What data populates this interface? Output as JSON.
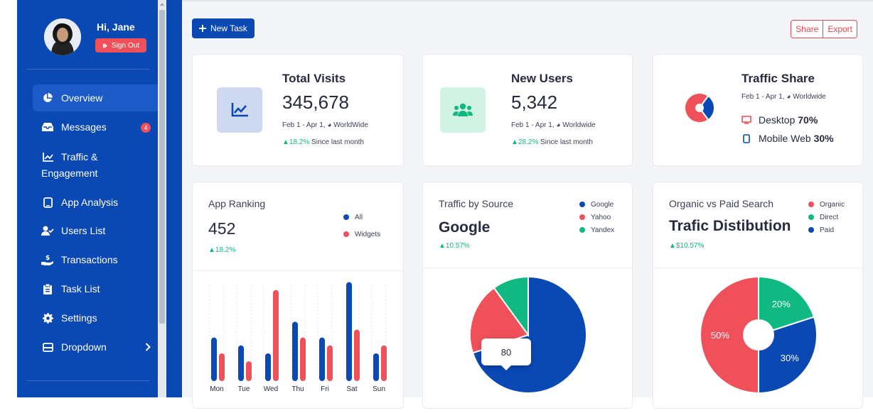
{
  "sidebar": {
    "greeting": "Hi, Jane",
    "signout_label": "Sign Out",
    "items": [
      {
        "label": "Overview",
        "active": true
      },
      {
        "label": "Messages",
        "badge": "4"
      },
      {
        "label": "Traffic &",
        "label2": "Engagement"
      },
      {
        "label": "App Analysis"
      },
      {
        "label": "Users List"
      },
      {
        "label": "Transactions"
      },
      {
        "label": "Task List"
      },
      {
        "label": "Settings"
      },
      {
        "label": "Dropdown"
      }
    ]
  },
  "toolbar": {
    "new_task_label": "New Task",
    "share_label": "Share",
    "export_label": "Export"
  },
  "cards": {
    "visits": {
      "title": "Total Visits",
      "value": "345,678",
      "range": "Feb 1 - Apr 1,",
      "region": "WorldWide",
      "change": "18.2%",
      "since": "Since last month"
    },
    "users": {
      "title": "New Users",
      "value": "5,342",
      "range": "Feb 1 - Apr 1,",
      "region": "Worldwide",
      "change": "28.2%",
      "since": "Since last month"
    },
    "share": {
      "title": "Traffic Share",
      "range": "Feb 1 - Apr 1,",
      "region": "Worldwide",
      "desktop_label": "Desktop",
      "desktop_value": "70%",
      "mobile_label": "Mobile Web",
      "mobile_value": "30%"
    }
  },
  "ranking": {
    "title": "App Ranking",
    "value": "452",
    "change": "18.2%",
    "legend": [
      "All",
      "Widgets"
    ]
  },
  "source": {
    "title": "Traffic by Source",
    "big": "Google",
    "change": "10.57%",
    "legend": [
      "Google",
      "Yahoo",
      "Yandex"
    ],
    "tooltip": "80"
  },
  "search": {
    "title": "Organic vs Paid Search",
    "big": "Trafic Distibution",
    "change": "$10.57%",
    "legend": [
      "Organic",
      "Direct",
      "Paid"
    ]
  },
  "colors": {
    "blue": "#0a48b3",
    "red": "#f0505a",
    "green": "#10b981"
  },
  "chart_data": [
    {
      "type": "bar",
      "title": "App Ranking",
      "categories": [
        "Mon",
        "Tue",
        "Wed",
        "Thu",
        "Fri",
        "Sat",
        "Sun"
      ],
      "series": [
        {
          "name": "All",
          "values": [
            55,
            45,
            35,
            75,
            55,
            125,
            35
          ]
        },
        {
          "name": "Widgets",
          "values": [
            35,
            25,
            115,
            55,
            45,
            65,
            45
          ]
        }
      ],
      "ylim": [
        0,
        130
      ]
    },
    {
      "type": "pie",
      "title": "Traffic by Source",
      "labels": [
        "Google",
        "Yahoo",
        "Yandex"
      ],
      "values": [
        70,
        20,
        10
      ]
    },
    {
      "type": "pie",
      "title": "Organic vs Paid Search",
      "labels": [
        "Organic",
        "Direct",
        "Paid"
      ],
      "values": [
        50,
        20,
        30
      ],
      "data_labels": [
        "50%",
        "20%",
        "30%"
      ]
    },
    {
      "type": "pie",
      "title": "Traffic Share",
      "labels": [
        "Desktop",
        "Mobile Web"
      ],
      "values": [
        70,
        30
      ]
    }
  ]
}
